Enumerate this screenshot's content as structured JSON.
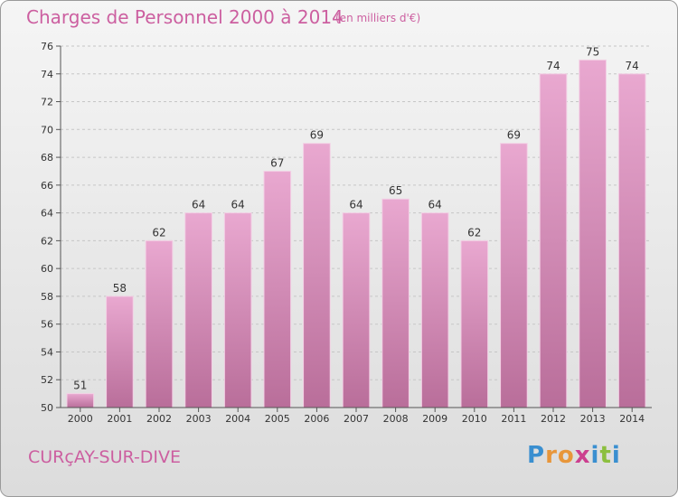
{
  "title": "Charges de Personnel 2000 à 2014",
  "subtitle": "(en milliers d'€)",
  "commune": "CURçAY-SUR-DIVE",
  "logo": {
    "letters": [
      "P",
      "r",
      "o",
      "x",
      "i",
      "t",
      "i"
    ],
    "colors": [
      "#3a8fd0",
      "#e8963a",
      "#e8963a",
      "#cc3f8f",
      "#3a8fd0",
      "#8cbf3f",
      "#3a8fd0"
    ]
  },
  "colors": {
    "accent": "#cc5fa0",
    "bar_top": "#e9a8d0",
    "bar_bottom": "#b96e9a"
  },
  "chart_data": {
    "type": "bar",
    "title": "Charges de Personnel 2000 à 2014",
    "categories": [
      "2000",
      "2001",
      "2002",
      "2003",
      "2004",
      "2005",
      "2006",
      "2007",
      "2008",
      "2009",
      "2010",
      "2011",
      "2012",
      "2013",
      "2014"
    ],
    "values": [
      51,
      58,
      62,
      64,
      64,
      67,
      69,
      64,
      65,
      64,
      62,
      69,
      74,
      75,
      74
    ],
    "ylim": [
      50,
      76
    ],
    "yticks": [
      50,
      52,
      54,
      56,
      58,
      60,
      62,
      64,
      66,
      68,
      70,
      72,
      74,
      76
    ],
    "grid": true,
    "xlabel": "",
    "ylabel": ""
  }
}
